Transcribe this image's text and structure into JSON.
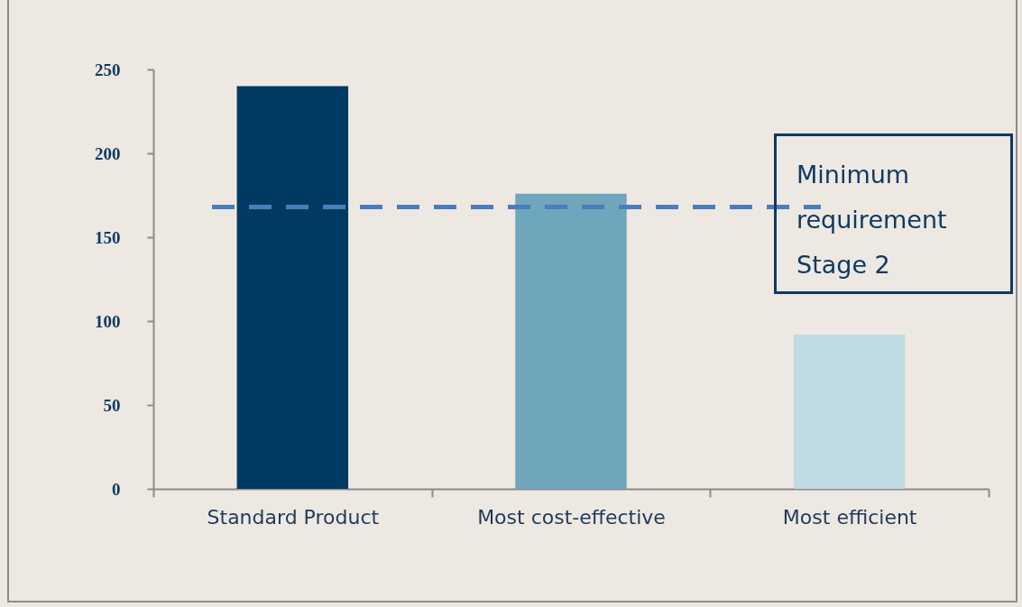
{
  "chart_data": {
    "type": "bar",
    "categories": [
      "Standard Product",
      "Most cost-effective",
      "Most efficient"
    ],
    "values": [
      240,
      176,
      92
    ],
    "colors": [
      "#003a63",
      "#70a6bc",
      "#bedbe3"
    ],
    "ylim": [
      0,
      250
    ],
    "yticks": [
      0,
      50,
      100,
      150,
      200,
      250
    ],
    "grid": false,
    "ref_lines": [
      {
        "axis": "y",
        "value": 168,
        "label": "Minimum requirement Stage 2",
        "color": "#4a7ebb",
        "line_style": "dashed"
      }
    ]
  }
}
